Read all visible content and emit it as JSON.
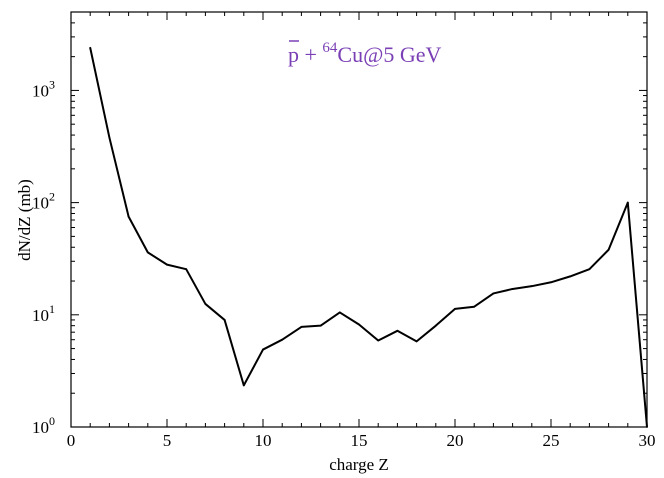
{
  "chart_data": {
    "type": "line",
    "title": "",
    "annotation": {
      "pbar": "p",
      "plus": " + ",
      "mass": "64",
      "element": "Cu@5 GeV",
      "color": "#7a3fb5"
    },
    "xlabel": "charge Z",
    "ylabel": "dN/dZ (mb)",
    "xlim": [
      0,
      30
    ],
    "ylim": [
      1,
      5000
    ],
    "yscale": "log",
    "grid": false,
    "legend": "none",
    "x_ticks": [
      "0",
      "5",
      "10",
      "15",
      "20",
      "25",
      "30"
    ],
    "y_ticks": [
      {
        "base": "10",
        "exp": "0"
      },
      {
        "base": "10",
        "exp": "1"
      },
      {
        "base": "10",
        "exp": "2"
      },
      {
        "base": "10",
        "exp": "3"
      }
    ],
    "series": [
      {
        "color": "#000000",
        "x": [
          1,
          2,
          3,
          4,
          5,
          6,
          7,
          8,
          9,
          10,
          11,
          12,
          13,
          14,
          15,
          16,
          17,
          18,
          19,
          20,
          21,
          22,
          23,
          24,
          25,
          26,
          27,
          28,
          29,
          30
        ],
        "y": [
          2400,
          380,
          75,
          36,
          28,
          25.5,
          12.5,
          9,
          2.35,
          4.9,
          6,
          7.8,
          8,
          10.5,
          8.2,
          5.9,
          7.2,
          5.8,
          8,
          11.3,
          11.8,
          15.5,
          17,
          18,
          19.5,
          22,
          25.5,
          38,
          100,
          1
        ]
      }
    ]
  }
}
